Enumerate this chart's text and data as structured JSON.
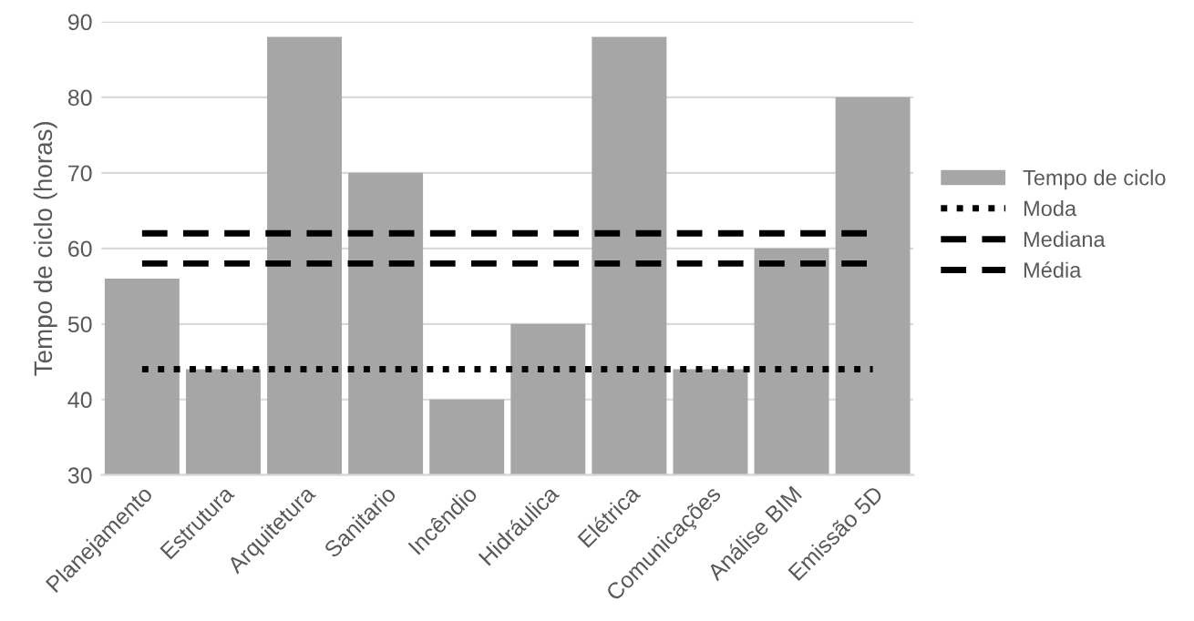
{
  "chart_data": {
    "type": "bar",
    "ylabel": "Tempo de ciclo (horas)",
    "categories": [
      "Planejamento",
      "Estrutura",
      "Arquitetura",
      "Sanitario",
      "Incêndio",
      "Hidráulica",
      "Elétrica",
      "Comunicações",
      "Análise BIM",
      "Emissão 5D"
    ],
    "series": [
      {
        "name": "Tempo de ciclo",
        "color": "#a6a6a6",
        "values": [
          56,
          44,
          88,
          70,
          40,
          50,
          88,
          44,
          60,
          80
        ]
      },
      {
        "name": "Moda",
        "type": "line",
        "color": "#000000",
        "line_style": "dotted",
        "values": [
          44,
          44,
          44,
          44,
          44,
          44,
          44,
          44,
          44,
          44
        ]
      },
      {
        "name": "Mediana",
        "type": "line",
        "color": "#000000",
        "line_style": "dashed",
        "values": [
          58,
          58,
          58,
          58,
          58,
          58,
          58,
          58,
          58,
          58
        ]
      },
      {
        "name": "Média",
        "type": "line",
        "color": "#000000",
        "line_style": "dashed",
        "values": [
          62,
          62,
          62,
          62,
          62,
          62,
          62,
          62,
          62,
          62
        ]
      }
    ],
    "ylim": [
      30,
      90
    ],
    "yticks": [
      30,
      40,
      50,
      60,
      70,
      80,
      90
    ],
    "grid": "y",
    "legend": "right"
  }
}
